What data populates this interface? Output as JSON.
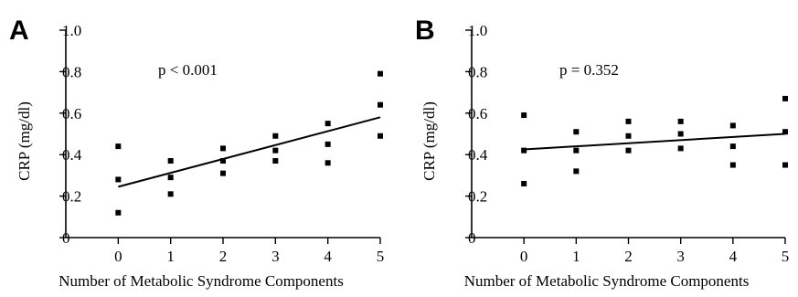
{
  "chart_data": [
    {
      "type": "scatter",
      "panel_label": "A",
      "annotation": "p < 0.001",
      "xlabel": "Number of Metabolic Syndrome Components",
      "ylabel": "CRP (mg/dl)",
      "xlim": [
        -1,
        5
      ],
      "ylim": [
        0,
        1.0
      ],
      "x_ticks": [
        0,
        1,
        2,
        3,
        4,
        5
      ],
      "y_ticks": [
        0,
        0.2,
        0.4,
        0.6,
        0.8,
        1.0
      ],
      "y_tick_labels": [
        "0",
        "0.2",
        "0.4",
        "0.6",
        "0.8",
        "1.0"
      ],
      "points": [
        {
          "x": 0,
          "y": 0.44
        },
        {
          "x": 0,
          "y": 0.28
        },
        {
          "x": 0,
          "y": 0.12
        },
        {
          "x": 1,
          "y": 0.37
        },
        {
          "x": 1,
          "y": 0.29
        },
        {
          "x": 1,
          "y": 0.21
        },
        {
          "x": 2,
          "y": 0.43
        },
        {
          "x": 2,
          "y": 0.37
        },
        {
          "x": 2,
          "y": 0.31
        },
        {
          "x": 3,
          "y": 0.49
        },
        {
          "x": 3,
          "y": 0.42
        },
        {
          "x": 3,
          "y": 0.37
        },
        {
          "x": 4,
          "y": 0.55
        },
        {
          "x": 4,
          "y": 0.45
        },
        {
          "x": 4,
          "y": 0.36
        },
        {
          "x": 5,
          "y": 0.79
        },
        {
          "x": 5,
          "y": 0.64
        },
        {
          "x": 5,
          "y": 0.49
        }
      ],
      "fit_line": {
        "x": [
          0,
          5
        ],
        "y": [
          0.245,
          0.58
        ]
      }
    },
    {
      "type": "scatter",
      "panel_label": "B",
      "annotation": "p = 0.352",
      "xlabel": "Number of Metabolic Syndrome Components",
      "ylabel": "CRP (mg/dl)",
      "xlim": [
        -1,
        5
      ],
      "ylim": [
        0,
        1.0
      ],
      "x_ticks": [
        0,
        1,
        2,
        3,
        4,
        5
      ],
      "y_ticks": [
        0,
        0.2,
        0.4,
        0.6,
        0.8,
        1.0
      ],
      "y_tick_labels": [
        "0",
        "0.2",
        "0.4",
        "0.6",
        "0.8",
        "1.0"
      ],
      "points": [
        {
          "x": 0,
          "y": 0.59
        },
        {
          "x": 0,
          "y": 0.42
        },
        {
          "x": 0,
          "y": 0.26
        },
        {
          "x": 1,
          "y": 0.51
        },
        {
          "x": 1,
          "y": 0.42
        },
        {
          "x": 1,
          "y": 0.32
        },
        {
          "x": 2,
          "y": 0.56
        },
        {
          "x": 2,
          "y": 0.49
        },
        {
          "x": 2,
          "y": 0.42
        },
        {
          "x": 3,
          "y": 0.56
        },
        {
          "x": 3,
          "y": 0.5
        },
        {
          "x": 3,
          "y": 0.43
        },
        {
          "x": 4,
          "y": 0.54
        },
        {
          "x": 4,
          "y": 0.44
        },
        {
          "x": 4,
          "y": 0.35
        },
        {
          "x": 5,
          "y": 0.67
        },
        {
          "x": 5,
          "y": 0.51
        },
        {
          "x": 5,
          "y": 0.35
        }
      ],
      "fit_line": {
        "x": [
          0,
          5
        ],
        "y": [
          0.425,
          0.5
        ]
      }
    }
  ]
}
